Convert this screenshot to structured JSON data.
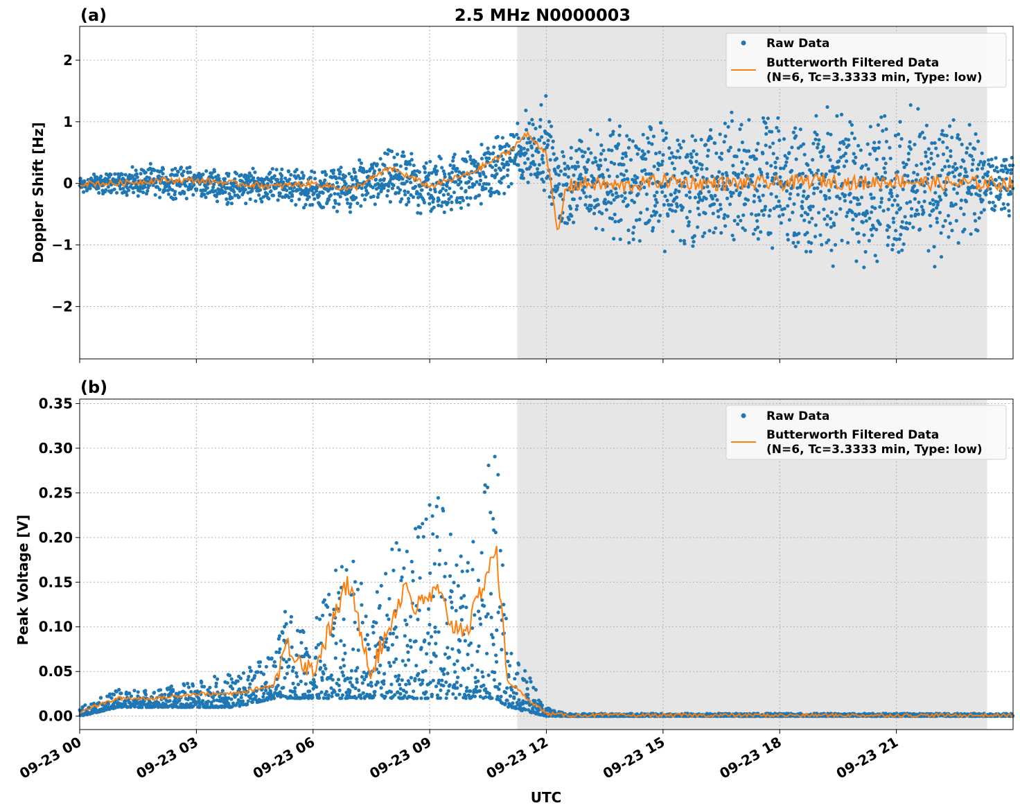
{
  "figure": {
    "title": "2.5 MHz N0000003",
    "xlabel": "UTC",
    "x_ticks": [
      "09-23 00",
      "09-23 03",
      "09-23 06",
      "09-23 09",
      "09-23 12",
      "09-23 15",
      "09-23 18",
      "09-23 21"
    ],
    "legend": {
      "raw": "Raw Data",
      "filtered_line1": "Butterworth Filtered Data",
      "filtered_line2": "(N=6, Tc=3.3333 min, Type: low)"
    },
    "colors": {
      "raw": "#1f77b4",
      "filtered": "#ff7f0e",
      "shade": "#e6e6e6"
    }
  },
  "chart_data": [
    {
      "type": "scatter",
      "panel_label": "(a)",
      "title": "2.5 MHz N0000003",
      "xlabel": "",
      "ylabel": "Doppler Shift [Hz]",
      "xlim": [
        "09-23 00:00",
        "09-24 00:00"
      ],
      "ylim": [
        -2.85,
        2.55
      ],
      "y_ticks": [
        "−2",
        "−1",
        "0",
        "1",
        "2"
      ],
      "y_tick_values": [
        -2,
        -1,
        0,
        1,
        2
      ],
      "grid": true,
      "legend_position": "top-right",
      "shaded_interval": [
        "09-23 11:15",
        "09-23 23:20"
      ],
      "series": [
        {
          "name": "Raw Data",
          "kind": "scatter",
          "envelope_x_hours": [
            0,
            1,
            2,
            3,
            4,
            5,
            6,
            7,
            8,
            9,
            10,
            11,
            11.5,
            12,
            12.3,
            13,
            14,
            15,
            16,
            17,
            18,
            19,
            20,
            21,
            22,
            23,
            23.3,
            24
          ],
          "envelope_upper": [
            0.15,
            0.25,
            0.35,
            0.3,
            0.25,
            0.3,
            0.25,
            0.35,
            0.6,
            0.5,
            0.6,
            0.9,
            1.3,
            1.5,
            0.6,
            1.0,
            1.3,
            1.1,
            1.2,
            1.3,
            1.1,
            1.3,
            1.4,
            1.3,
            1.4,
            1.1,
            0.5,
            0.5
          ],
          "envelope_lower": [
            -0.2,
            -0.2,
            -0.3,
            -0.25,
            -0.4,
            -0.3,
            -0.45,
            -0.5,
            -0.4,
            -0.6,
            -0.5,
            -0.2,
            -0.2,
            -0.2,
            -0.8,
            -0.8,
            -1.2,
            -1.2,
            -1.3,
            -1.1,
            -1.2,
            -1.3,
            -1.5,
            -1.5,
            -1.4,
            -1.3,
            -0.6,
            -0.6
          ]
        },
        {
          "name": "Butterworth Filtered Data (N=6, Tc=3.3333 min, Type: low)",
          "kind": "line",
          "x_hours": [
            0,
            1,
            2,
            3,
            4,
            5,
            6,
            7,
            8,
            9,
            10,
            11,
            11.5,
            12,
            12.3,
            12.5,
            13,
            14,
            15,
            16,
            17,
            18,
            19,
            20,
            21,
            22,
            23,
            24
          ],
          "y": [
            0.0,
            0.0,
            0.05,
            0.05,
            0.0,
            -0.05,
            0.0,
            -0.1,
            0.25,
            -0.05,
            0.15,
            0.5,
            0.8,
            0.5,
            -0.85,
            -0.05,
            0.0,
            -0.05,
            0.05,
            0.0,
            0.0,
            0.0,
            0.05,
            0.0,
            0.05,
            0.0,
            0.0,
            0.0
          ]
        }
      ]
    },
    {
      "type": "scatter",
      "panel_label": "(b)",
      "xlabel": "UTC",
      "ylabel": "Peak Voltage [V]",
      "xlim": [
        "09-23 00:00",
        "09-24 00:00"
      ],
      "ylim": [
        -0.015,
        0.355
      ],
      "y_ticks": [
        "0.00",
        "0.05",
        "0.10",
        "0.15",
        "0.20",
        "0.25",
        "0.30",
        "0.35"
      ],
      "y_tick_values": [
        0,
        0.05,
        0.1,
        0.15,
        0.2,
        0.25,
        0.3,
        0.35
      ],
      "grid": true,
      "legend_position": "top-right",
      "shaded_interval": [
        "09-23 11:15",
        "09-23 23:20"
      ],
      "series": [
        {
          "name": "Raw Data",
          "kind": "scatter",
          "envelope_x_hours": [
            0,
            1,
            2,
            3,
            4,
            5,
            5.3,
            6,
            6.9,
            7.5,
            8.4,
            8.6,
            9.2,
            9.6,
            10,
            10.7,
            11,
            11.5,
            12,
            12.5,
            24
          ],
          "envelope_upper": [
            0.01,
            0.03,
            0.03,
            0.04,
            0.05,
            0.07,
            0.12,
            0.1,
            0.2,
            0.12,
            0.25,
            0.22,
            0.25,
            0.2,
            0.2,
            0.33,
            0.08,
            0.05,
            0.01,
            0.003,
            0.003
          ],
          "envelope_lower": [
            0.0,
            0.01,
            0.01,
            0.01,
            0.01,
            0.02,
            0.02,
            0.02,
            0.02,
            0.02,
            0.02,
            0.02,
            0.02,
            0.02,
            0.02,
            0.02,
            0.01,
            0.005,
            0.0,
            0.0,
            0.0
          ]
        },
        {
          "name": "Butterworth Filtered Data (N=6, Tc=3.3333 min, Type: low)",
          "kind": "line",
          "x_hours": [
            0,
            1,
            2,
            3,
            4,
            5,
            5.3,
            6,
            6.9,
            7.5,
            8.4,
            8.6,
            9.2,
            9.6,
            10,
            10.7,
            11,
            11.5,
            12,
            12.5,
            24
          ],
          "y": [
            0.005,
            0.02,
            0.02,
            0.025,
            0.025,
            0.035,
            0.08,
            0.05,
            0.15,
            0.05,
            0.15,
            0.12,
            0.14,
            0.1,
            0.1,
            0.19,
            0.04,
            0.02,
            0.003,
            0.001,
            0.001
          ]
        }
      ]
    }
  ]
}
